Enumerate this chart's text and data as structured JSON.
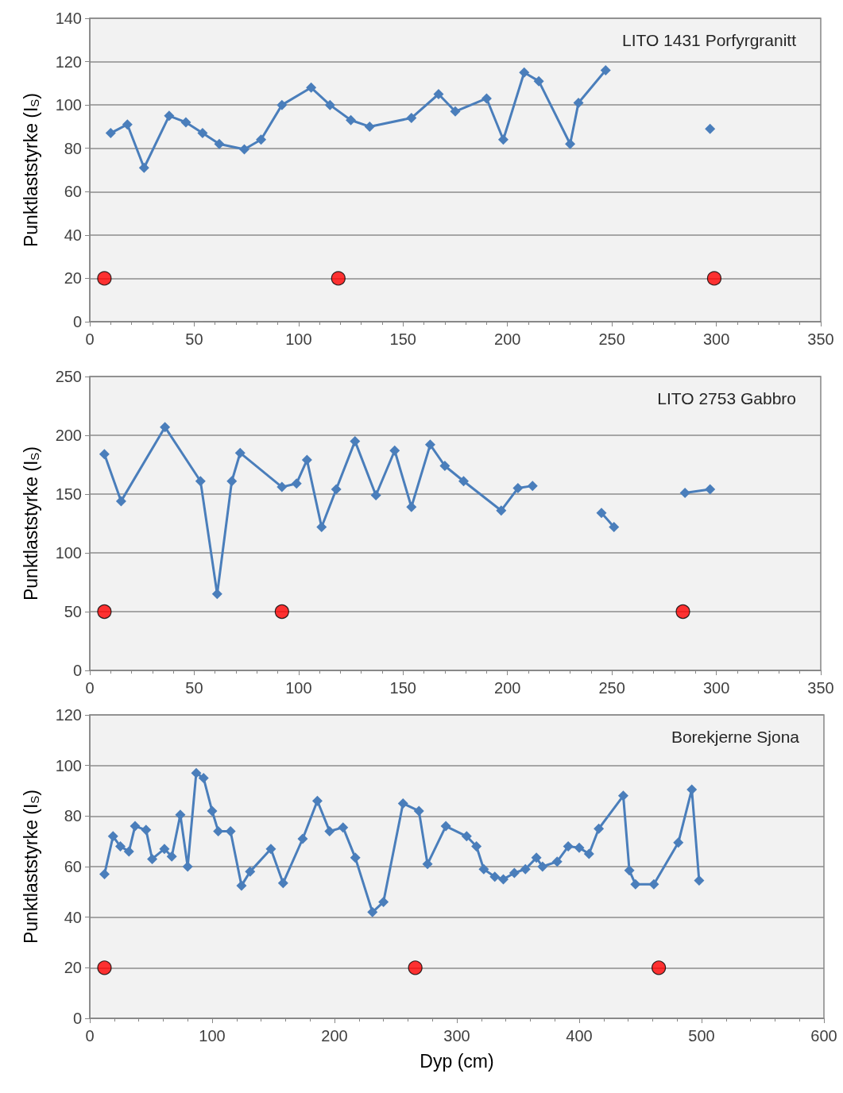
{
  "chart_data": [
    {
      "type": "line",
      "ylabel": "Punktlaststyrke (I$_{S}$)",
      "annotations": [
        "LITO 1431 Porfyrgranitt"
      ],
      "xlim": [
        0,
        350
      ],
      "xticks": [
        0,
        50,
        100,
        150,
        200,
        250,
        300,
        350
      ],
      "ylim": [
        0,
        140
      ],
      "yticks": [
        0,
        20,
        40,
        60,
        80,
        100,
        120,
        140
      ],
      "grid": "y",
      "line_style": "solid",
      "series": [
        {
          "color": "#4a7ebb",
          "marker": "diamond",
          "x": [
            10,
            18,
            26,
            38,
            46,
            54,
            62,
            74,
            82,
            92,
            106,
            115,
            125,
            134,
            154,
            167,
            175,
            190,
            198,
            208,
            215,
            230,
            234,
            247,
            270,
            297
          ],
          "values": [
            87,
            91,
            71,
            95,
            92,
            87,
            82,
            79.5,
            84,
            100,
            108,
            100,
            93,
            90,
            94,
            105,
            97,
            103,
            84,
            115,
            111,
            82,
            101,
            116,
            null,
            89
          ]
        },
        {
          "type": "scatter",
          "color": "#ff0000",
          "marker": "circle",
          "x": [
            7,
            119,
            299
          ],
          "values": [
            20,
            20,
            20
          ]
        }
      ]
    },
    {
      "type": "line",
      "ylabel": "Punktlaststyrke (I$_{S}$)",
      "annotations": [
        "LITO 2753 Gabbro"
      ],
      "xlim": [
        0,
        350
      ],
      "xticks": [
        0,
        50,
        100,
        150,
        200,
        250,
        300,
        350
      ],
      "ylim": [
        0,
        250
      ],
      "yticks": [
        0,
        50,
        100,
        150,
        200,
        250
      ],
      "grid": "y",
      "line_style": "solid",
      "series": [
        {
          "color": "#4a7ebb",
          "marker": "diamond",
          "x": [
            7,
            15,
            36,
            53,
            61,
            68,
            72,
            92,
            99,
            104,
            111,
            118,
            127,
            137,
            146,
            154,
            163,
            170,
            179,
            197,
            205,
            212,
            228,
            245,
            251,
            268,
            285,
            297
          ],
          "values": [
            184,
            144,
            207,
            161,
            65,
            161,
            185,
            156,
            159,
            179,
            122,
            154,
            195,
            149,
            187,
            139,
            192,
            174,
            161,
            136,
            155,
            157,
            null,
            134,
            122,
            null,
            151,
            154
          ]
        },
        {
          "type": "scatter",
          "color": "#ff0000",
          "marker": "circle",
          "x": [
            7,
            92,
            284
          ],
          "values": [
            50,
            50,
            50
          ]
        }
      ]
    },
    {
      "type": "line",
      "ylabel": "Punktlaststyrke (I$_{S}$)",
      "xlabel": "Dyp (cm)",
      "annotations": [
        "Borekjerne Sjona"
      ],
      "xlim": [
        0,
        600
      ],
      "xticks": [
        0,
        100,
        200,
        300,
        400,
        500,
        600
      ],
      "ylim": [
        0,
        120
      ],
      "yticks": [
        0,
        20,
        40,
        60,
        80,
        100,
        120
      ],
      "grid": "y",
      "line_style": "solid",
      "series": [
        {
          "color": "#4a7ebb",
          "marker": "diamond",
          "x": [
            12,
            19,
            25,
            32,
            37,
            46,
            51,
            61,
            67,
            74,
            80,
            87,
            93,
            100,
            105,
            115,
            124,
            131,
            148,
            158,
            174,
            186,
            196,
            207,
            217,
            231,
            240,
            256,
            269,
            276,
            291,
            308,
            316,
            322,
            331,
            338,
            347,
            356,
            365,
            370,
            382,
            391,
            400,
            408,
            416,
            436,
            441,
            446,
            461,
            481,
            492,
            498
          ],
          "values": [
            57,
            72,
            68,
            66,
            76,
            74.5,
            63,
            67,
            64,
            80.5,
            60,
            97,
            95,
            82,
            74,
            74,
            52.5,
            58,
            67,
            53.5,
            71,
            86,
            74,
            75.5,
            63.5,
            42,
            46,
            85,
            82,
            61,
            76,
            72,
            68,
            59,
            56,
            55,
            57.5,
            59,
            63.5,
            60,
            62,
            68,
            67.5,
            65,
            75,
            88,
            58.5,
            53,
            53,
            69.5,
            90.5,
            54.5
          ]
        },
        {
          "type": "scatter",
          "color": "#ff0000",
          "marker": "circle",
          "x": [
            12,
            266,
            465
          ],
          "values": [
            20,
            20,
            20
          ]
        }
      ]
    }
  ]
}
